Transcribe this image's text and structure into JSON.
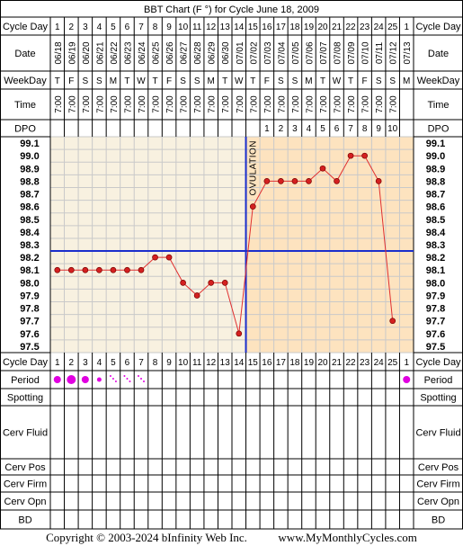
{
  "chart_data": {
    "type": "line",
    "title": "BBT Chart (F °) for Cycle June 18, 2009",
    "row_labels": {
      "cycle_day": "Cycle Day",
      "date": "Date",
      "weekday": "WeekDay",
      "time": "Time",
      "dpo": "DPO",
      "period": "Period",
      "spotting": "Spotting",
      "cerv_fluid": "Cerv Fluid",
      "cerv_pos": "Cerv Pos",
      "cerv_firm": "Cerv Firm",
      "cerv_opn": "Cerv Opn",
      "bd": "BD"
    },
    "cycle_days": [
      "1",
      "2",
      "3",
      "4",
      "5",
      "6",
      "7",
      "8",
      "9",
      "10",
      "11",
      "12",
      "13",
      "14",
      "15",
      "16",
      "17",
      "18",
      "19",
      "20",
      "21",
      "22",
      "23",
      "24",
      "25",
      "1"
    ],
    "dates": [
      "06/18",
      "06/19",
      "06/20",
      "06/21",
      "06/22",
      "06/23",
      "06/24",
      "06/25",
      "06/26",
      "06/27",
      "06/28",
      "06/29",
      "06/30",
      "07/01",
      "07/02",
      "07/03",
      "07/04",
      "07/05",
      "07/06",
      "07/07",
      "07/08",
      "07/09",
      "07/10",
      "07/11",
      "07/12",
      "07/13"
    ],
    "weekdays": [
      "T",
      "F",
      "S",
      "S",
      "M",
      "T",
      "W",
      "T",
      "F",
      "S",
      "S",
      "M",
      "T",
      "W",
      "T",
      "F",
      "S",
      "S",
      "M",
      "T",
      "W",
      "T",
      "F",
      "S",
      "S",
      "M"
    ],
    "times": [
      "7:00",
      "7:00",
      "7:00",
      "7:00",
      "7:00",
      "7:00",
      "7:00",
      "7:00",
      "7:00",
      "7:00",
      "7:00",
      "7:00",
      "7:00",
      "7:00",
      "7:00",
      "7:00",
      "7:00",
      "7:00",
      "7:00",
      "7:00",
      "7:00",
      "7:00",
      "7:00",
      "7:00",
      "7:00",
      ""
    ],
    "dpo": [
      "",
      "",
      "",
      "",
      "",
      "",
      "",
      "",
      "",
      "",
      "",
      "",
      "",
      "",
      "",
      "1",
      "2",
      "3",
      "4",
      "5",
      "6",
      "7",
      "8",
      "9",
      "10",
      ""
    ],
    "y_ticks": [
      "99.1",
      "99.0",
      "98.9",
      "98.8",
      "98.7",
      "98.6",
      "98.5",
      "98.4",
      "98.3",
      "98.2",
      "98.1",
      "98.0",
      "97.9",
      "97.8",
      "97.7",
      "97.6",
      "97.5"
    ],
    "ylim": [
      97.5,
      99.1
    ],
    "temperatures": [
      98.1,
      98.1,
      98.1,
      98.1,
      98.1,
      98.1,
      98.1,
      98.2,
      98.2,
      98.0,
      97.9,
      98.0,
      98.0,
      97.6,
      98.6,
      98.8,
      98.8,
      98.8,
      98.8,
      98.9,
      98.8,
      99.0,
      99.0,
      98.8,
      97.7,
      null
    ],
    "coverline": 98.3,
    "ovulation_day": 15,
    "ovulation_label": "OVULATION",
    "period": [
      2,
      3,
      2,
      1,
      0.5,
      0.5,
      0.5,
      0,
      0,
      0,
      0,
      0,
      0,
      0,
      0,
      0,
      0,
      0,
      0,
      0,
      0,
      0,
      0,
      0,
      0,
      2
    ],
    "colors": {
      "grid_bg": "#f8f1e0",
      "luteal_bg": "#fde3bf",
      "grid_line": "#c9c9c9",
      "temp_line": "#e03030",
      "temp_dot": "#d42020",
      "coverline": "#1a2ecc",
      "period_dot": "#e000e0"
    }
  },
  "footer": {
    "copyright": "Copyright © 2003-2024 bInfinity Web Inc.",
    "site": "www.MyMonthlyCycles.com"
  }
}
